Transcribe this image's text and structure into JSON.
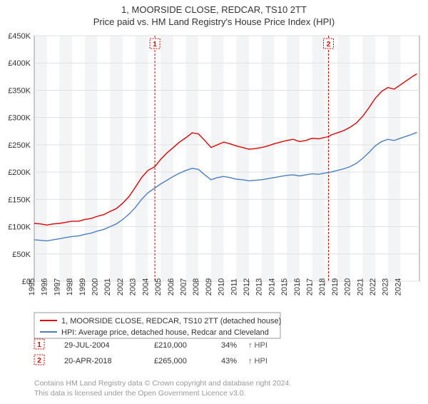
{
  "title": "1, MOORSIDE CLOSE, REDCAR, TS10 2TT",
  "subtitle": "Price paid vs. HM Land Registry's House Price Index (HPI)",
  "chart": {
    "type": "line",
    "background_color": "#ffffff",
    "plot_bg_alt": "#f3f4f6",
    "grid_color": "#e0e0e0",
    "x_label_rotation": -90,
    "x_years": [
      1995,
      1996,
      1997,
      1998,
      1999,
      2000,
      2001,
      2002,
      2003,
      2004,
      2005,
      2006,
      2007,
      2008,
      2009,
      2010,
      2011,
      2012,
      2013,
      2014,
      2015,
      2016,
      2017,
      2018,
      2019,
      2020,
      2021,
      2022,
      2023,
      2024
    ],
    "x_domain": [
      1995,
      2025.5
    ],
    "y_ticks": [
      0,
      50,
      100,
      150,
      200,
      250,
      300,
      350,
      400,
      450
    ],
    "y_tick_labels": [
      "£0",
      "£50K",
      "£100K",
      "£150K",
      "£200K",
      "£250K",
      "£300K",
      "£350K",
      "£400K",
      "£450K"
    ],
    "y_domain": [
      0,
      450
    ],
    "label_fontsize": 11,
    "series": [
      {
        "name": "1, MOORSIDE CLOSE, REDCAR, TS10 2TT (detached house)",
        "color": "#e00000",
        "width": 1.4,
        "points": [
          [
            1995,
            106
          ],
          [
            1995.5,
            105
          ],
          [
            1996,
            103
          ],
          [
            1996.5,
            105
          ],
          [
            1997,
            106
          ],
          [
            1997.5,
            108
          ],
          [
            1998,
            110
          ],
          [
            1998.5,
            110
          ],
          [
            1999,
            113
          ],
          [
            1999.5,
            115
          ],
          [
            2000,
            119
          ],
          [
            2000.5,
            122
          ],
          [
            2001,
            128
          ],
          [
            2001.5,
            133
          ],
          [
            2002,
            143
          ],
          [
            2002.5,
            155
          ],
          [
            2003,
            172
          ],
          [
            2003.5,
            190
          ],
          [
            2004,
            203
          ],
          [
            2004.55,
            210
          ],
          [
            2005,
            223
          ],
          [
            2005.5,
            235
          ],
          [
            2006,
            245
          ],
          [
            2006.5,
            255
          ],
          [
            2007,
            263
          ],
          [
            2007.5,
            272
          ],
          [
            2008,
            270
          ],
          [
            2008.5,
            258
          ],
          [
            2009,
            245
          ],
          [
            2009.5,
            250
          ],
          [
            2010,
            255
          ],
          [
            2010.5,
            252
          ],
          [
            2011,
            248
          ],
          [
            2011.5,
            245
          ],
          [
            2012,
            242
          ],
          [
            2012.5,
            243
          ],
          [
            2013,
            245
          ],
          [
            2013.5,
            248
          ],
          [
            2014,
            252
          ],
          [
            2014.5,
            255
          ],
          [
            2015,
            258
          ],
          [
            2015.5,
            260
          ],
          [
            2016,
            256
          ],
          [
            2016.5,
            258
          ],
          [
            2017,
            262
          ],
          [
            2017.5,
            261
          ],
          [
            2018.3,
            265
          ],
          [
            2018.5,
            268
          ],
          [
            2019,
            272
          ],
          [
            2019.5,
            276
          ],
          [
            2020,
            282
          ],
          [
            2020.5,
            290
          ],
          [
            2021,
            302
          ],
          [
            2021.5,
            318
          ],
          [
            2022,
            335
          ],
          [
            2022.5,
            348
          ],
          [
            2023,
            355
          ],
          [
            2023.5,
            352
          ],
          [
            2024,
            360
          ],
          [
            2024.5,
            368
          ],
          [
            2025,
            376
          ],
          [
            2025.3,
            380
          ]
        ]
      },
      {
        "name": "HPI: Average price, detached house, Redcar and Cleveland",
        "color": "#4a7fc5",
        "width": 1.4,
        "points": [
          [
            1995,
            76
          ],
          [
            1995.5,
            75
          ],
          [
            1996,
            74
          ],
          [
            1996.5,
            76
          ],
          [
            1997,
            78
          ],
          [
            1997.5,
            80
          ],
          [
            1998,
            82
          ],
          [
            1998.5,
            83
          ],
          [
            1999,
            86
          ],
          [
            1999.5,
            88
          ],
          [
            2000,
            92
          ],
          [
            2000.5,
            95
          ],
          [
            2001,
            100
          ],
          [
            2001.5,
            105
          ],
          [
            2002,
            113
          ],
          [
            2002.5,
            123
          ],
          [
            2003,
            135
          ],
          [
            2003.5,
            150
          ],
          [
            2004,
            162
          ],
          [
            2004.5,
            170
          ],
          [
            2005,
            178
          ],
          [
            2005.5,
            185
          ],
          [
            2006,
            192
          ],
          [
            2006.5,
            198
          ],
          [
            2007,
            203
          ],
          [
            2007.5,
            207
          ],
          [
            2008,
            205
          ],
          [
            2008.5,
            195
          ],
          [
            2009,
            186
          ],
          [
            2009.5,
            190
          ],
          [
            2010,
            192
          ],
          [
            2010.5,
            190
          ],
          [
            2011,
            187
          ],
          [
            2011.5,
            186
          ],
          [
            2012,
            184
          ],
          [
            2012.5,
            185
          ],
          [
            2013,
            186
          ],
          [
            2013.5,
            188
          ],
          [
            2014,
            190
          ],
          [
            2014.5,
            192
          ],
          [
            2015,
            194
          ],
          [
            2015.5,
            195
          ],
          [
            2016,
            193
          ],
          [
            2016.5,
            195
          ],
          [
            2017,
            197
          ],
          [
            2017.5,
            196
          ],
          [
            2018,
            198
          ],
          [
            2018.5,
            200
          ],
          [
            2019,
            203
          ],
          [
            2019.5,
            206
          ],
          [
            2020,
            210
          ],
          [
            2020.5,
            216
          ],
          [
            2021,
            225
          ],
          [
            2021.5,
            236
          ],
          [
            2022,
            248
          ],
          [
            2022.5,
            256
          ],
          [
            2023,
            260
          ],
          [
            2023.5,
            258
          ],
          [
            2024,
            262
          ],
          [
            2024.5,
            266
          ],
          [
            2025,
            270
          ],
          [
            2025.3,
            273
          ]
        ]
      }
    ],
    "sale_markers": [
      {
        "num": "1",
        "x_year": 2004.55,
        "date": "29-JUL-2004",
        "price": "£210,000",
        "pct": "34%",
        "suffix": "↑ HPI"
      },
      {
        "num": "2",
        "x_year": 2018.3,
        "date": "20-APR-2018",
        "price": "£265,000",
        "pct": "43%",
        "suffix": "↑ HPI"
      }
    ],
    "marker_line_color": "#e00000",
    "marker_line_dash": "3 2"
  },
  "legend": {
    "border_color": "#999999",
    "text_color": "#333333"
  },
  "credit_line1": "Contains HM Land Registry data © Crown copyright and database right 2024.",
  "credit_line2": "This data is licensed under the Open Government Licence v3.0."
}
